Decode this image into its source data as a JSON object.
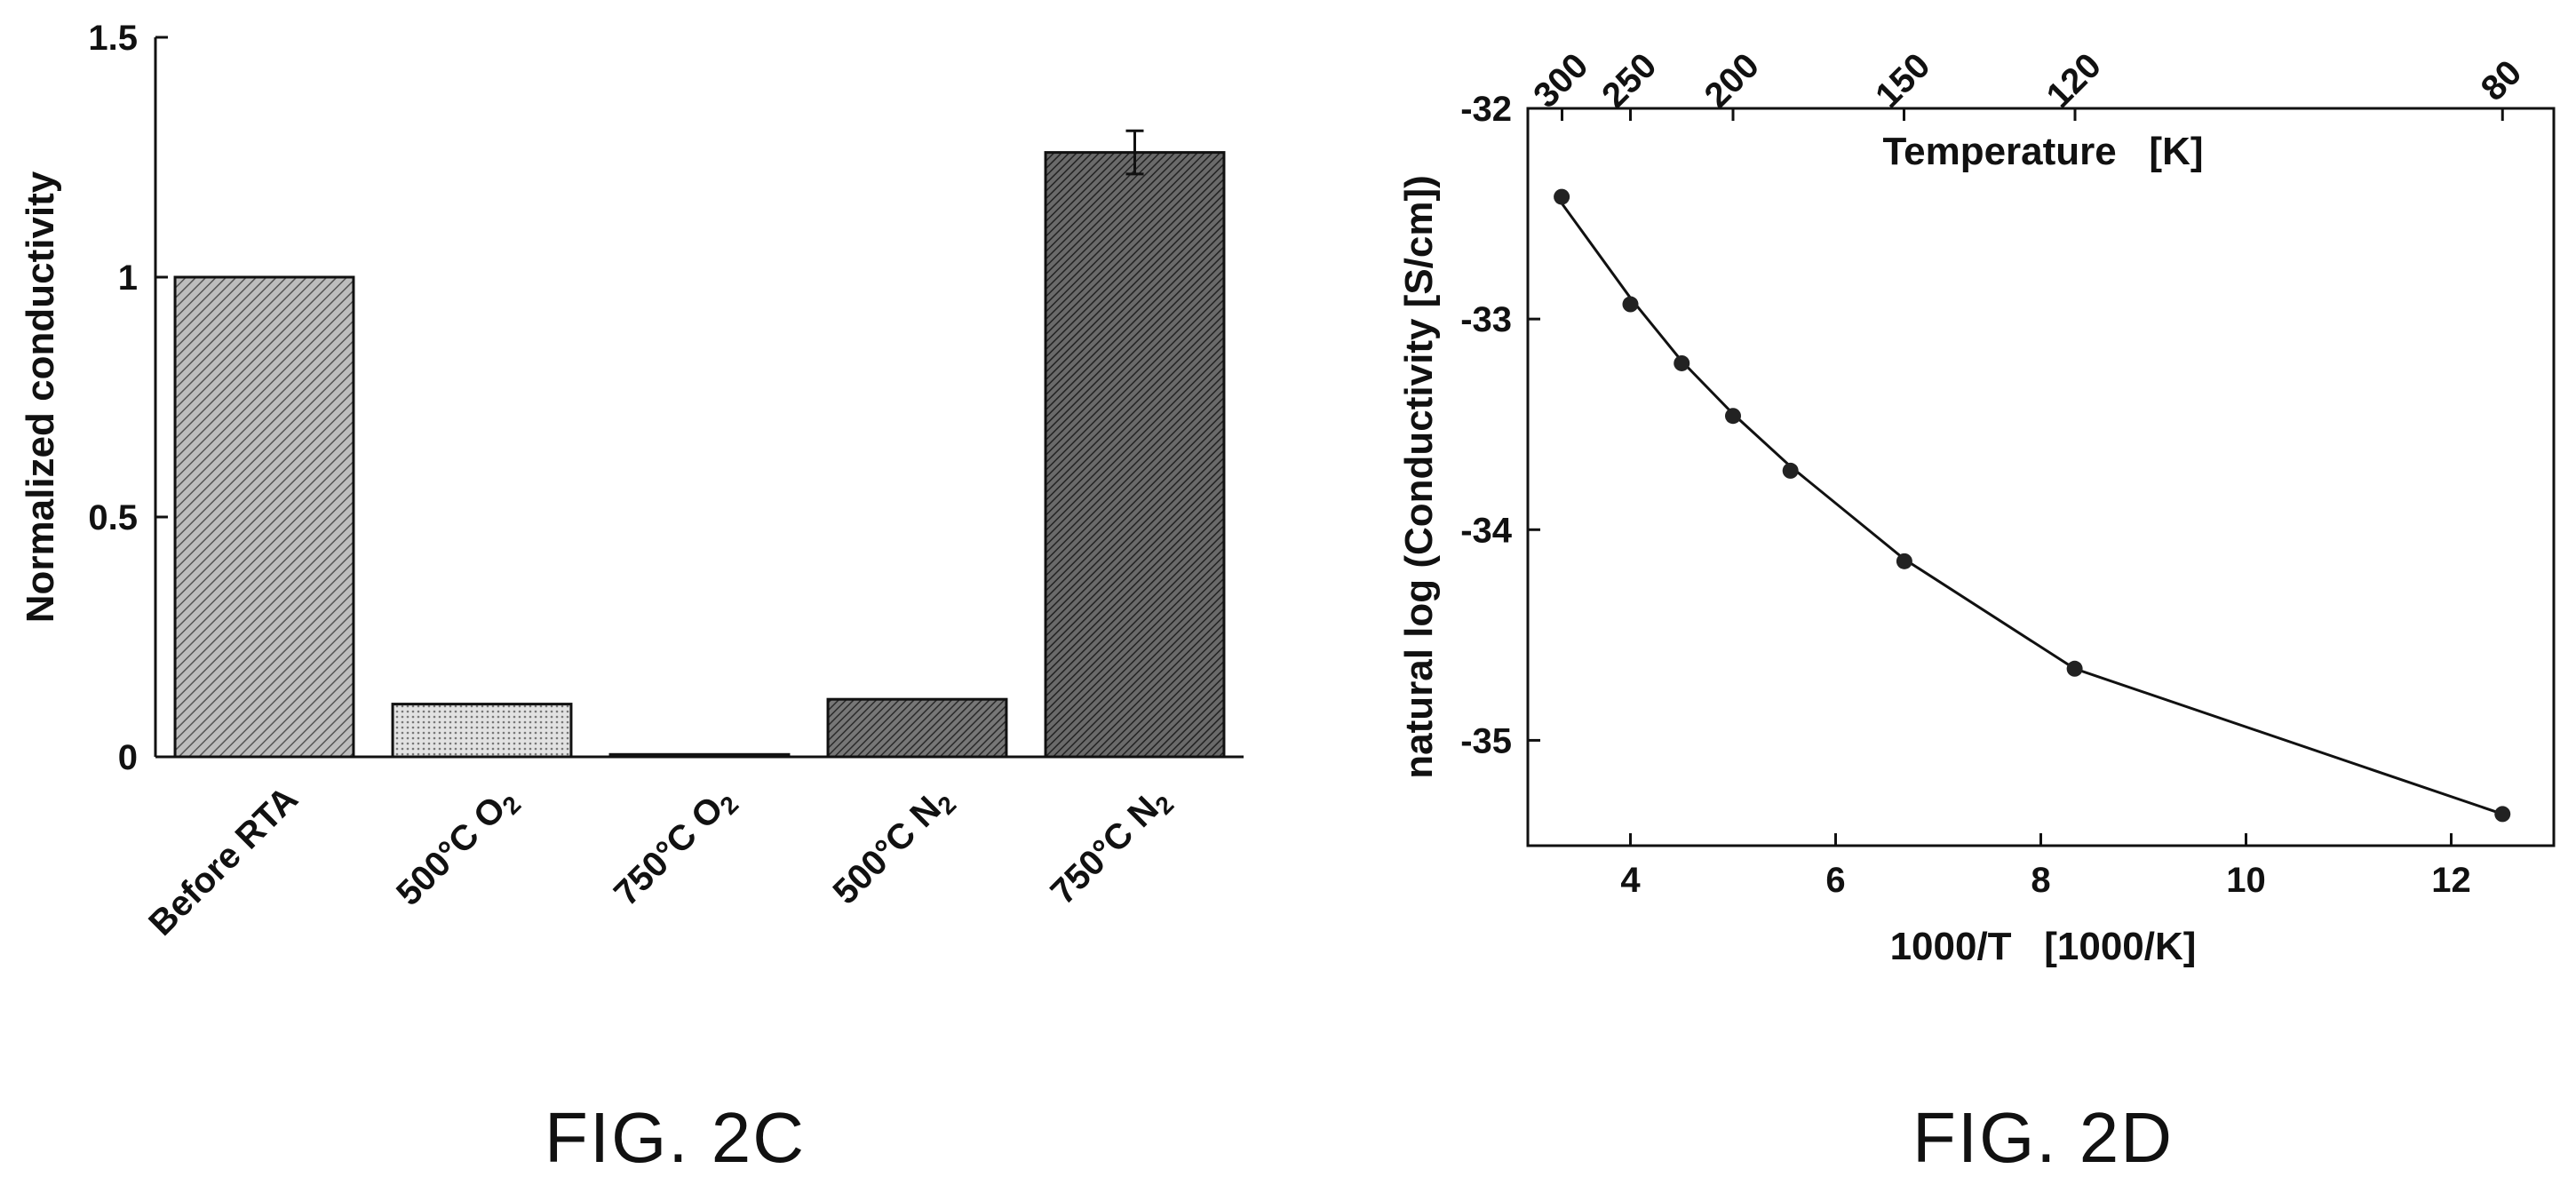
{
  "chart_data": [
    {
      "type": "bar",
      "title": "",
      "caption": "FIG. 2C",
      "ylabel": "Normalized conductivity",
      "xlabel": "",
      "ylim": [
        0,
        1.5
      ],
      "yticks": [
        "0",
        "0.5",
        "1",
        "1.5"
      ],
      "ytick_values": [
        0,
        0.5,
        1,
        1.5
      ],
      "categories": [
        {
          "main": "Before RTA",
          "sub": ""
        },
        {
          "main": "500°C O",
          "sub": "2"
        },
        {
          "main": "750°C O",
          "sub": "2"
        },
        {
          "main": "500°C N",
          "sub": "2"
        },
        {
          "main": "750°C N",
          "sub": "2"
        }
      ],
      "values": [
        1.0,
        0.11,
        0.005,
        0.12,
        1.26
      ],
      "error": [
        0,
        0,
        0,
        0,
        0.045
      ],
      "colors": [
        "#9a9a9a",
        "#cfcfcf",
        "#6a6a6a",
        "#5a5a5a",
        "#4a4a4a"
      ],
      "grid": false
    },
    {
      "type": "line",
      "title": "",
      "caption": "FIG. 2D",
      "xlabel": "1000/T   [1000/K]",
      "ylabel": "natural log (Conductivity [S/cm])",
      "top_xlabel": "Temperature   [K]",
      "xlim": [
        3,
        13
      ],
      "ylim": [
        -35.5,
        -32
      ],
      "xticks": [
        "4",
        "6",
        "8",
        "10",
        "12"
      ],
      "xtick_values": [
        4,
        6,
        8,
        10,
        12
      ],
      "yticks": [
        "-32",
        "-33",
        "-34",
        "-35"
      ],
      "ytick_values": [
        -32,
        -33,
        -34,
        -35
      ],
      "top_ticks": [
        "300",
        "250",
        "200",
        "150",
        "120",
        "80"
      ],
      "top_tick_temps_K": [
        300,
        250,
        200,
        150,
        120,
        80
      ],
      "points_x": [
        3.33,
        4.0,
        4.5,
        5.0,
        5.56,
        6.67,
        8.33,
        12.5
      ],
      "points_y": [
        -32.42,
        -32.93,
        -33.21,
        -33.46,
        -33.72,
        -34.15,
        -34.66,
        -35.35
      ],
      "fit_x": [
        3.33,
        4.0,
        4.5,
        5.0,
        5.56,
        6.67,
        8.33,
        12.5
      ],
      "fit_y": [
        -32.45,
        -32.9,
        -33.2,
        -33.45,
        -33.7,
        -34.14,
        -34.66,
        -35.35
      ],
      "grid": false
    }
  ]
}
